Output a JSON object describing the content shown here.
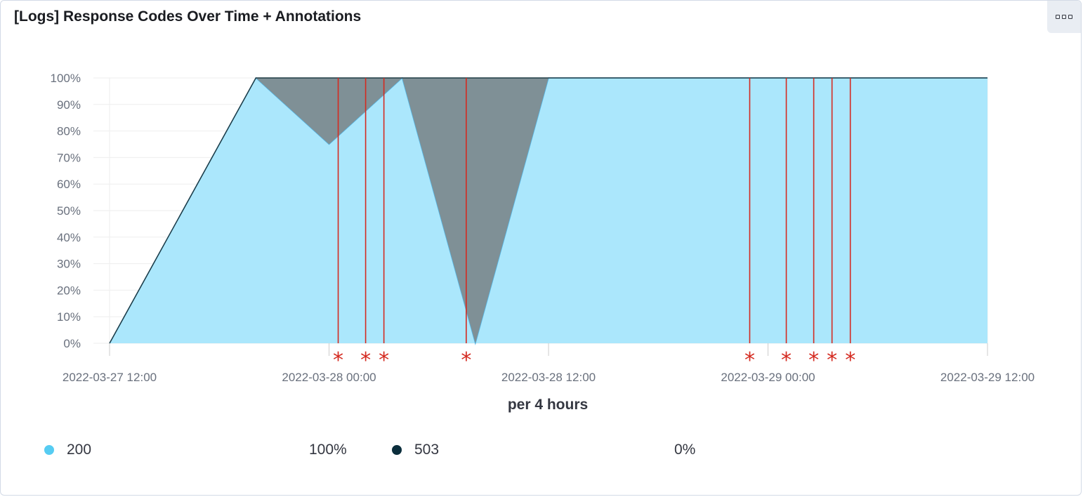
{
  "panel": {
    "title": "[Logs] Response Codes Over Time + Annotations",
    "menu_icon": "ellipsis-icon"
  },
  "colors": {
    "series_200": "#abe7fc",
    "series_200_stroke": "#54b6e6",
    "series_503": "#7f9096",
    "series_503_stroke": "#2b5566",
    "annotation": "#d42a20",
    "grid": "#eeeeee",
    "axis": "#cccccc"
  },
  "chart_data": {
    "type": "area",
    "stacked": true,
    "percentage": true,
    "xlabel": "per 4 hours",
    "ylabel": "",
    "ylim": [
      0,
      100
    ],
    "grid": true,
    "x_ticks": [
      "2022-03-27 12:00",
      "2022-03-28 00:00",
      "2022-03-28 12:00",
      "2022-03-29 00:00",
      "2022-03-29 12:00"
    ],
    "y_ticks": [
      "0%",
      "10%",
      "20%",
      "30%",
      "40%",
      "50%",
      "60%",
      "70%",
      "80%",
      "90%",
      "100%"
    ],
    "x": [
      "2022-03-27 12:00",
      "2022-03-27 16:00",
      "2022-03-27 20:00",
      "2022-03-28 00:00",
      "2022-03-28 04:00",
      "2022-03-28 08:00",
      "2022-03-28 12:00",
      "2022-03-28 16:00",
      "2022-03-28 20:00",
      "2022-03-29 00:00",
      "2022-03-29 04:00",
      "2022-03-29 08:00",
      "2022-03-29 12:00"
    ],
    "series": [
      {
        "name": "200",
        "values": [
          0,
          50,
          100,
          75,
          100,
          0,
          100,
          100,
          100,
          100,
          100,
          100,
          100
        ]
      },
      {
        "name": "503",
        "values": [
          0,
          0,
          0,
          25,
          0,
          100,
          0,
          0,
          0,
          0,
          0,
          0,
          0
        ]
      }
    ],
    "annotations": [
      "2022-03-28 00:30",
      "2022-03-28 02:00",
      "2022-03-28 03:00",
      "2022-03-28 07:30",
      "2022-03-28 23:00",
      "2022-03-29 01:00",
      "2022-03-29 02:30",
      "2022-03-29 03:30",
      "2022-03-29 04:30"
    ],
    "annotation_marker": "*",
    "legend_position": "bottom",
    "legend": [
      {
        "name": "200",
        "value": "100%",
        "color": "#56ccf2"
      },
      {
        "name": "503",
        "value": "0%",
        "color": "#0b2e3c"
      }
    ]
  }
}
